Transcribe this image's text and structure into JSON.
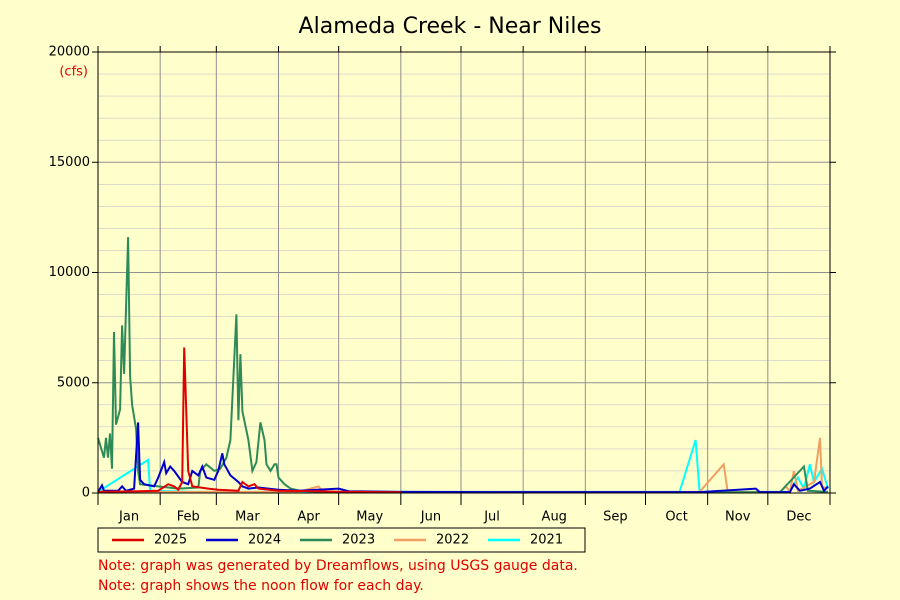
{
  "chart_data": {
    "type": "line",
    "title": "Alameda Creek - Near Niles",
    "y_unit": "(cfs)",
    "notes": [
      "Note: graph was generated by Dreamflows, using USGS gauge data.",
      "Note: graph shows the noon flow for each day."
    ],
    "months": [
      "Jan",
      "Feb",
      "Mar",
      "Apr",
      "May",
      "Jun",
      "Jul",
      "Aug",
      "Sep",
      "Oct",
      "Nov",
      "Dec"
    ],
    "xlim": [
      0,
      365
    ],
    "xticks": [
      0,
      31,
      59,
      90,
      120,
      151,
      181,
      212,
      243,
      273,
      304,
      334,
      365
    ],
    "ylim": [
      0,
      20000
    ],
    "yticks": [
      0,
      5000,
      10000,
      15000,
      20000
    ],
    "yminorticks": [
      1000,
      2000,
      3000,
      4000,
      6000,
      7000,
      8000,
      9000,
      11000,
      12000,
      13000,
      14000,
      16000,
      17000,
      18000,
      19000
    ],
    "grid": true,
    "series": [
      {
        "name": "2025",
        "color": "#e00000",
        "x": [
          0,
          20,
          30,
          35,
          38,
          40,
          42,
          43,
          45,
          47,
          55,
          60,
          70,
          72,
          75,
          78,
          80,
          90,
          110,
          120,
          140,
          151
        ],
        "values": [
          50,
          80,
          100,
          400,
          300,
          150,
          500,
          6600,
          1000,
          300,
          200,
          150,
          100,
          500,
          300,
          400,
          200,
          100,
          80,
          60,
          40,
          30
        ]
      },
      {
        "name": "2024",
        "color": "#0000cc",
        "x": [
          0,
          2,
          3,
          10,
          12,
          14,
          18,
          20,
          21,
          23,
          28,
          30,
          33,
          34,
          36,
          38,
          42,
          45,
          47,
          50,
          52,
          54,
          58,
          60,
          62,
          63,
          66,
          70,
          72,
          75,
          80,
          90,
          100,
          120,
          125,
          150,
          200,
          250,
          300,
          328,
          330,
          345,
          347,
          350,
          355,
          360,
          362,
          364
        ],
        "values": [
          50,
          350,
          100,
          100,
          300,
          100,
          200,
          3200,
          600,
          400,
          300,
          700,
          1400,
          900,
          1200,
          1000,
          500,
          400,
          1000,
          800,
          1200,
          700,
          600,
          1000,
          1800,
          1300,
          800,
          500,
          300,
          200,
          250,
          150,
          100,
          200,
          80,
          50,
          40,
          40,
          40,
          200,
          40,
          40,
          400,
          100,
          200,
          500,
          100,
          300
        ]
      },
      {
        "name": "2023",
        "color": "#2e8b57",
        "x": [
          0,
          2,
          3,
          4,
          5,
          6,
          7,
          8,
          9,
          11,
          12,
          13,
          15,
          16,
          17,
          19,
          20,
          21,
          30,
          40,
          50,
          51,
          54,
          58,
          61,
          64,
          66,
          69,
          70,
          71,
          72,
          75,
          77,
          79,
          81,
          83,
          84,
          86,
          88,
          89,
          90,
          93,
          96,
          101,
          111,
          151,
          250,
          340,
          352,
          354,
          364
        ],
        "values": [
          2500,
          1900,
          1600,
          2500,
          1600,
          2700,
          1100,
          7300,
          3100,
          3800,
          7600,
          5400,
          11600,
          5300,
          4000,
          2900,
          1000,
          400,
          300,
          200,
          250,
          1000,
          1300,
          1000,
          1100,
          1600,
          2400,
          8100,
          3300,
          6300,
          3700,
          2400,
          1000,
          1400,
          3200,
          2400,
          1300,
          1000,
          1300,
          1300,
          700,
          400,
          200,
          100,
          50,
          30,
          30,
          30,
          1200,
          100,
          50
        ]
      },
      {
        "name": "2022",
        "color": "#f0a060",
        "x": [
          0,
          100,
          110,
          112,
          300,
          312,
          314,
          340,
          343,
          345,
          347,
          349,
          357,
          360,
          361,
          364
        ],
        "values": [
          50,
          50,
          300,
          50,
          50,
          1300,
          50,
          50,
          300,
          50,
          1000,
          100,
          500,
          2500,
          300,
          200
        ]
      },
      {
        "name": "2021",
        "color": "#00ffff",
        "x": [
          0,
          25,
          26,
          50,
          290,
          298,
          300,
          345,
          349,
          352,
          355,
          357,
          361,
          364
        ],
        "values": [
          50,
          1500,
          100,
          50,
          50,
          2400,
          50,
          50,
          700,
          200,
          1300,
          500,
          1100,
          200
        ]
      }
    ]
  }
}
